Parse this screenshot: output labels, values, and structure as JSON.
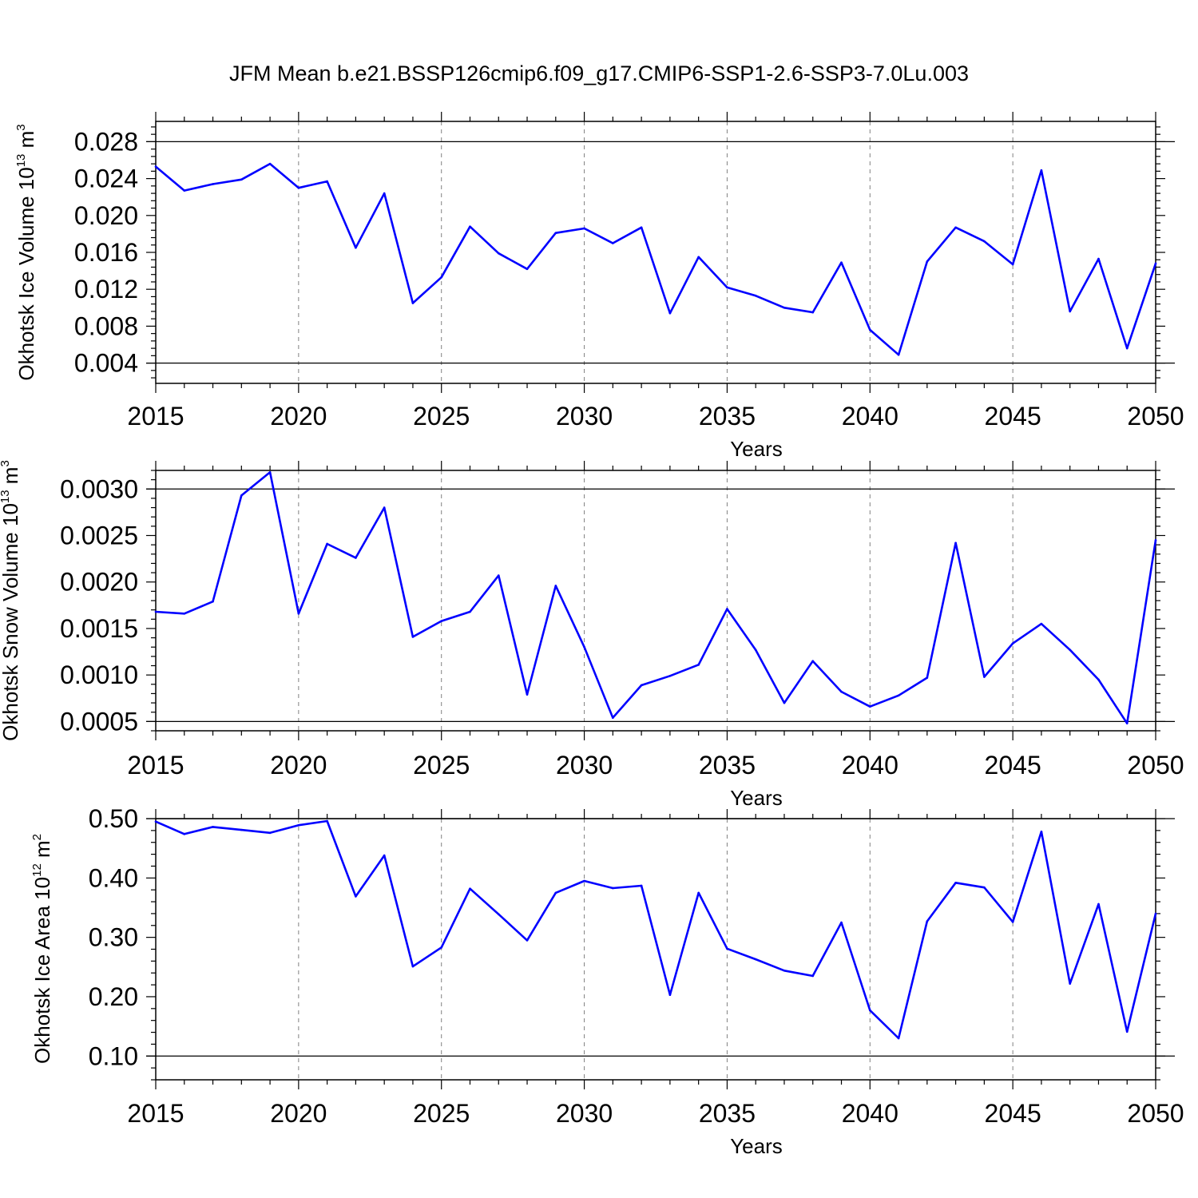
{
  "title": "JFM Mean b.e21.BSSP126cmip6.f09_g17.CMIP6-SSP1-2.6-SSP3-7.0Lu.003",
  "colors": {
    "series": "#0000ff",
    "axis": "#000000",
    "grid": "#808080"
  },
  "chart_data": [
    {
      "type": "line",
      "title": "",
      "ylabel": {
        "text": "Okhotsk Ice Volume 10",
        "exponent": "13",
        "unit": " m",
        "unit_exponent": "3"
      },
      "xlabel": "Years",
      "xlim": [
        2015,
        2050
      ],
      "ylim": [
        0.0018,
        0.0302
      ],
      "x_ticks": [
        2015,
        2020,
        2025,
        2030,
        2035,
        2040,
        2045,
        2050
      ],
      "y_ticks": [
        0.004,
        0.008,
        0.012,
        0.016,
        0.02,
        0.024,
        0.028
      ],
      "y_tick_labels": [
        "0.004",
        "0.008",
        "0.012",
        "0.016",
        "0.020",
        "0.024",
        "0.028"
      ],
      "grid": "vertical dashed at major x ticks",
      "series": [
        {
          "name": "Okhotsk Ice Volume",
          "color": "#0000ff",
          "x": [
            2015,
            2016,
            2017,
            2018,
            2019,
            2020,
            2021,
            2022,
            2023,
            2024,
            2025,
            2026,
            2027,
            2028,
            2029,
            2030,
            2031,
            2032,
            2033,
            2034,
            2035,
            2036,
            2037,
            2038,
            2039,
            2040,
            2041,
            2042,
            2043,
            2044,
            2045,
            2046,
            2047,
            2048,
            2049,
            2050
          ],
          "values": [
            0.0253,
            0.0227,
            0.0234,
            0.0239,
            0.0256,
            0.023,
            0.0237,
            0.0165,
            0.0224,
            0.0105,
            0.0133,
            0.0188,
            0.0159,
            0.0142,
            0.0181,
            0.0186,
            0.017,
            0.0187,
            0.0094,
            0.0155,
            0.0122,
            0.0113,
            0.01,
            0.0095,
            0.0149,
            0.0076,
            0.0049,
            0.015,
            0.0187,
            0.0172,
            0.0147,
            0.0249,
            0.0096,
            0.0153,
            0.0056,
            0.0148
          ]
        }
      ]
    },
    {
      "type": "line",
      "title": "",
      "ylabel": {
        "text": "Okhotsk Snow Volume 10",
        "exponent": "13",
        "unit": " m",
        "unit_exponent": "3"
      },
      "xlabel": "Years",
      "xlim": [
        2015,
        2050
      ],
      "ylim": [
        0.0004,
        0.0032
      ],
      "x_ticks": [
        2015,
        2020,
        2025,
        2030,
        2035,
        2040,
        2045,
        2050
      ],
      "y_ticks": [
        0.0005,
        0.001,
        0.0015,
        0.002,
        0.0025,
        0.003
      ],
      "y_tick_labels": [
        "0.0005",
        "0.0010",
        "0.0015",
        "0.0020",
        "0.0025",
        "0.0030"
      ],
      "grid": "vertical dashed at major x ticks",
      "series": [
        {
          "name": "Okhotsk Snow Volume",
          "color": "#0000ff",
          "x": [
            2015,
            2016,
            2017,
            2018,
            2019,
            2020,
            2021,
            2022,
            2023,
            2024,
            2025,
            2026,
            2027,
            2028,
            2029,
            2030,
            2031,
            2032,
            2033,
            2034,
            2035,
            2036,
            2037,
            2038,
            2039,
            2040,
            2041,
            2042,
            2043,
            2044,
            2045,
            2046,
            2047,
            2048,
            2049,
            2050
          ],
          "values": [
            0.00168,
            0.00166,
            0.00179,
            0.00293,
            0.00318,
            0.00166,
            0.00241,
            0.00226,
            0.0028,
            0.00141,
            0.00158,
            0.00168,
            0.00207,
            0.00079,
            0.00196,
            0.0013,
            0.00054,
            0.00089,
            0.00099,
            0.00111,
            0.00171,
            0.00127,
            0.0007,
            0.00115,
            0.00082,
            0.00066,
            0.00078,
            0.00097,
            0.00242,
            0.00098,
            0.00134,
            0.00155,
            0.00127,
            0.00095,
            0.00048,
            0.00245
          ]
        }
      ]
    },
    {
      "type": "line",
      "title": "",
      "ylabel": {
        "text": "Okhotsk Ice Area 10",
        "exponent": "12",
        "unit": " m",
        "unit_exponent": "2"
      },
      "xlabel": "Years",
      "xlim": [
        2015,
        2050
      ],
      "ylim": [
        0.06,
        0.5
      ],
      "x_ticks": [
        2015,
        2020,
        2025,
        2030,
        2035,
        2040,
        2045,
        2050
      ],
      "y_ticks": [
        0.1,
        0.2,
        0.3,
        0.4,
        0.5
      ],
      "y_tick_labels": [
        "0.10",
        "0.20",
        "0.30",
        "0.40",
        "0.50"
      ],
      "grid": "vertical dashed at major x ticks",
      "series": [
        {
          "name": "Okhotsk Ice Area",
          "color": "#0000ff",
          "x": [
            2015,
            2016,
            2017,
            2018,
            2019,
            2020,
            2021,
            2022,
            2023,
            2024,
            2025,
            2026,
            2027,
            2028,
            2029,
            2030,
            2031,
            2032,
            2033,
            2034,
            2035,
            2036,
            2037,
            2038,
            2039,
            2040,
            2041,
            2042,
            2043,
            2044,
            2045,
            2046,
            2047,
            2048,
            2049,
            2050
          ],
          "values": [
            0.495,
            0.474,
            0.486,
            0.481,
            0.476,
            0.489,
            0.496,
            0.369,
            0.438,
            0.251,
            0.283,
            0.382,
            0.339,
            0.295,
            0.375,
            0.395,
            0.383,
            0.387,
            0.203,
            0.375,
            0.281,
            0.263,
            0.244,
            0.235,
            0.325,
            0.177,
            0.13,
            0.327,
            0.392,
            0.384,
            0.326,
            0.478,
            0.222,
            0.356,
            0.141,
            0.34
          ]
        }
      ]
    }
  ]
}
